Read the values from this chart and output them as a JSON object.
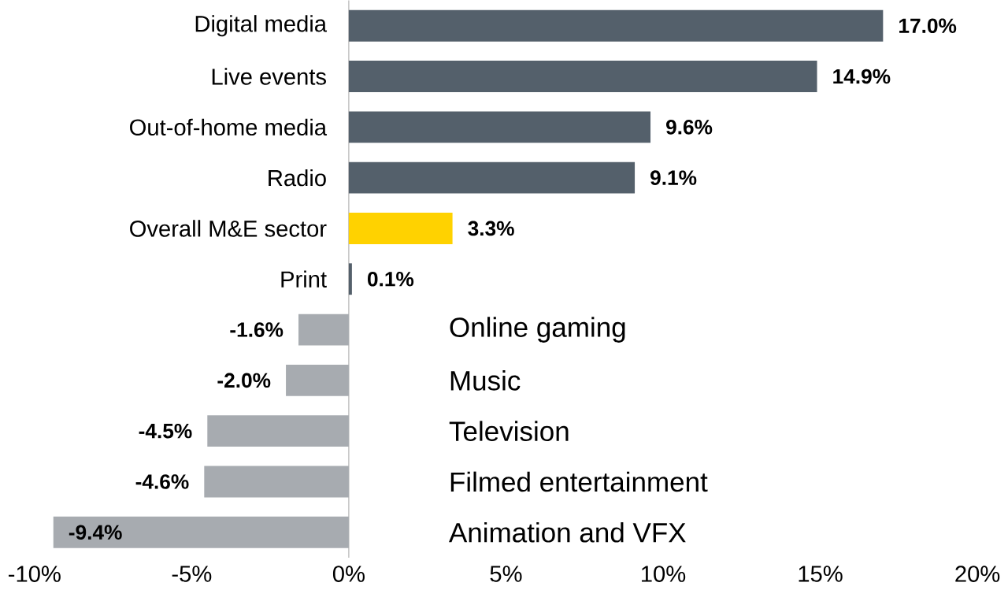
{
  "chart_data": {
    "type": "bar",
    "orientation": "horizontal",
    "categories": [
      "Digital media",
      "Live events",
      "Out-of-home media",
      "Radio",
      "Overall M&E sector",
      "Print",
      "Online gaming",
      "Music",
      "Television",
      "Filmed entertainment",
      "Animation and VFX"
    ],
    "values": [
      17.0,
      14.9,
      9.6,
      9.1,
      3.3,
      0.1,
      -1.6,
      -2.0,
      -4.5,
      -4.6,
      -9.4
    ],
    "colors": [
      "#54606b",
      "#54606b",
      "#54606b",
      "#54606b",
      "#ffd200",
      "#54606b",
      "#a7abb0",
      "#a7abb0",
      "#a7abb0",
      "#a7abb0",
      "#a7abb0"
    ],
    "value_labels": [
      "17.0%",
      "14.9%",
      "9.6%",
      "9.1%",
      "3.3%",
      "0.1%",
      "-1.6%",
      "-2.0%",
      "-4.5%",
      "-4.6%",
      "-9.4%"
    ],
    "xlim": [
      -10,
      20
    ],
    "xticks": [
      {
        "value": -10,
        "label": "-10%"
      },
      {
        "value": -5,
        "label": "-5%"
      },
      {
        "value": 0,
        "label": "0%"
      },
      {
        "value": 5,
        "label": "5%"
      },
      {
        "value": 10,
        "label": "10%"
      },
      {
        "value": 15,
        "label": "15%"
      },
      {
        "value": 20,
        "label": "20%"
      }
    ],
    "grid": false
  }
}
